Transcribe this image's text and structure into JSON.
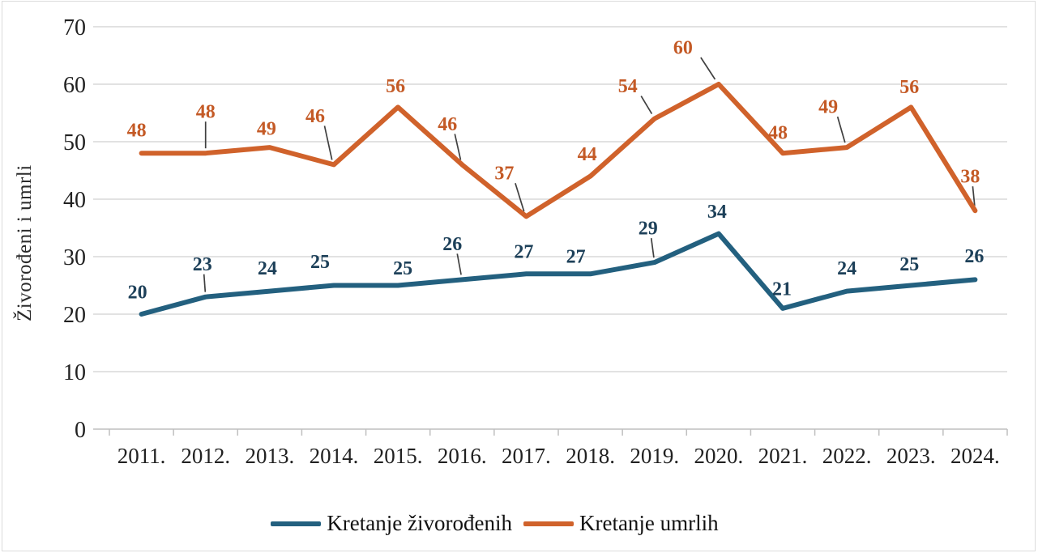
{
  "chart_data": {
    "type": "line",
    "title": "",
    "ylabel": "Živorođeni i umrli",
    "xlabel": "",
    "categories": [
      "2011.",
      "2012.",
      "2013.",
      "2014.",
      "2015.",
      "2016.",
      "2017.",
      "2018.",
      "2019.",
      "2020.",
      "2021.",
      "2022.",
      "2023.",
      "2024."
    ],
    "y_ticks": [
      0,
      10,
      20,
      30,
      40,
      50,
      60,
      70
    ],
    "ylim": [
      0,
      70
    ],
    "grid": true,
    "legend_position": "bottom",
    "series": [
      {
        "name": "Kretanje živorođenih",
        "color": "#23607f",
        "label_color": "#1d4059",
        "values": [
          20,
          23,
          24,
          25,
          25,
          26,
          27,
          27,
          29,
          34,
          21,
          24,
          25,
          26
        ]
      },
      {
        "name": "Kretanje umrlih",
        "color": "#d0622b",
        "label_color": "#c45a26",
        "values": [
          48,
          48,
          49,
          46,
          56,
          46,
          37,
          44,
          54,
          60,
          48,
          49,
          56,
          38
        ]
      }
    ],
    "colors": {
      "grid": "#d8d8d8",
      "axis": "#bfbfbf",
      "tick_text": "#212121",
      "leader_line": "#404040"
    }
  }
}
